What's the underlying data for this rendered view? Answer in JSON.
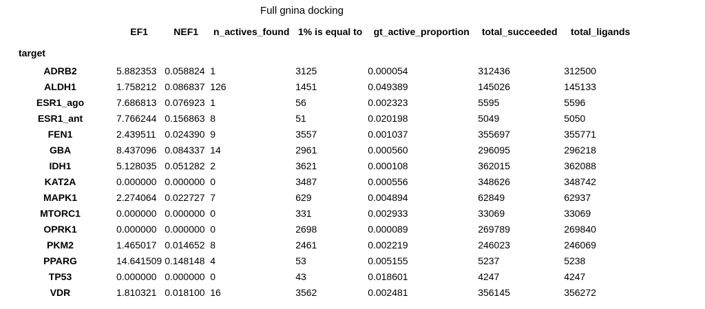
{
  "caption": "Full gnina docking",
  "columns": [
    "EF1",
    "NEF1",
    "n_actives_found",
    "1% is equal to",
    "gt_active_proportion",
    "total_succeeded",
    "total_ligands"
  ],
  "index_name": "target",
  "rows": [
    {
      "target": "ADRB2",
      "values": [
        "5.882353",
        "0.058824",
        "1",
        "3125",
        "0.000054",
        "312436",
        "312500"
      ]
    },
    {
      "target": "ALDH1",
      "values": [
        "1.758212",
        "0.086837",
        "126",
        "1451",
        "0.049389",
        "145026",
        "145133"
      ]
    },
    {
      "target": "ESR1_ago",
      "values": [
        "7.686813",
        "0.076923",
        "1",
        "56",
        "0.002323",
        "5595",
        "5596"
      ]
    },
    {
      "target": "ESR1_ant",
      "values": [
        "7.766244",
        "0.156863",
        "8",
        "51",
        "0.020198",
        "5049",
        "5050"
      ]
    },
    {
      "target": "FEN1",
      "values": [
        "2.439511",
        "0.024390",
        "9",
        "3557",
        "0.001037",
        "355697",
        "355771"
      ]
    },
    {
      "target": "GBA",
      "values": [
        "8.437096",
        "0.084337",
        "14",
        "2961",
        "0.000560",
        "296095",
        "296218"
      ]
    },
    {
      "target": "IDH1",
      "values": [
        "5.128035",
        "0.051282",
        "2",
        "3621",
        "0.000108",
        "362015",
        "362088"
      ]
    },
    {
      "target": "KAT2A",
      "values": [
        "0.000000",
        "0.000000",
        "0",
        "3487",
        "0.000556",
        "348626",
        "348742"
      ]
    },
    {
      "target": "MAPK1",
      "values": [
        "2.274064",
        "0.022727",
        "7",
        "629",
        "0.004894",
        "62849",
        "62937"
      ]
    },
    {
      "target": "MTORC1",
      "values": [
        "0.000000",
        "0.000000",
        "0",
        "331",
        "0.002933",
        "33069",
        "33069"
      ]
    },
    {
      "target": "OPRK1",
      "values": [
        "0.000000",
        "0.000000",
        "0",
        "2698",
        "0.000089",
        "269789",
        "269840"
      ]
    },
    {
      "target": "PKM2",
      "values": [
        "1.465017",
        "0.014652",
        "8",
        "2461",
        "0.002219",
        "246023",
        "246069"
      ]
    },
    {
      "target": "PPARG",
      "values": [
        "14.641509",
        "0.148148",
        "4",
        "53",
        "0.005155",
        "5237",
        "5238"
      ]
    },
    {
      "target": "TP53",
      "values": [
        "0.000000",
        "0.000000",
        "0",
        "43",
        "0.018601",
        "4247",
        "4247"
      ]
    },
    {
      "target": "VDR",
      "values": [
        "1.810321",
        "0.018100",
        "16",
        "3562",
        "0.002481",
        "356145",
        "356272"
      ]
    }
  ]
}
